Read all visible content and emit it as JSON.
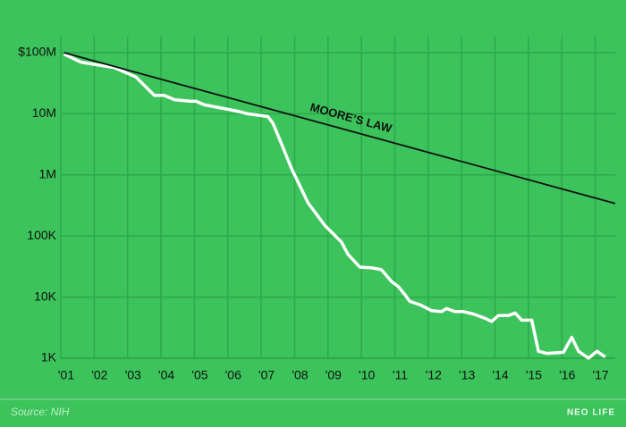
{
  "chart_data": {
    "type": "line",
    "log_scale": true,
    "grid": true,
    "background": "#3cc35b",
    "grid_color": "#2ea84b",
    "xlim": [
      2001,
      2017.6
    ],
    "xticks": [
      {
        "value": 2001,
        "label": "'01"
      },
      {
        "value": 2002,
        "label": "'02"
      },
      {
        "value": 2003,
        "label": "'03"
      },
      {
        "value": 2004,
        "label": "'04"
      },
      {
        "value": 2005,
        "label": "'05"
      },
      {
        "value": 2006,
        "label": "'06"
      },
      {
        "value": 2007,
        "label": "'07"
      },
      {
        "value": 2008,
        "label": "'08"
      },
      {
        "value": 2009,
        "label": "'09"
      },
      {
        "value": 2010,
        "label": "'10"
      },
      {
        "value": 2011,
        "label": "'11"
      },
      {
        "value": 2012,
        "label": "'12"
      },
      {
        "value": 2013,
        "label": "'13"
      },
      {
        "value": 2014,
        "label": "'14"
      },
      {
        "value": 2015,
        "label": "'15"
      },
      {
        "value": 2016,
        "label": "'16"
      },
      {
        "value": 2017,
        "label": "'17"
      }
    ],
    "ylim": [
      1000,
      100000000
    ],
    "yticks": [
      {
        "value": 1000,
        "label": "1K"
      },
      {
        "value": 10000,
        "label": "10K"
      },
      {
        "value": 100000,
        "label": "100K"
      },
      {
        "value": 1000000,
        "label": "1M"
      },
      {
        "value": 10000000,
        "label": "10M"
      },
      {
        "value": 100000000,
        "label": "$100M"
      }
    ],
    "series": [
      {
        "color": "#ffffff",
        "x": [
          2001.1,
          2001.6,
          2002.6,
          2003.25,
          2003.8,
          2004.1,
          2004.4,
          2004.9,
          2005.05,
          2005.3,
          2005.95,
          2006.3,
          2006.6,
          2007.2,
          2007.35,
          2007.6,
          2007.9,
          2008.4,
          2008.9,
          2009.4,
          2009.6,
          2009.95,
          2010.35,
          2010.6,
          2010.9,
          2011.1,
          2011.3,
          2011.45,
          2011.75,
          2012.1,
          2012.4,
          2012.55,
          2012.8,
          2013.05,
          2013.35,
          2013.7,
          2013.9,
          2014.1,
          2014.4,
          2014.6,
          2014.8,
          2015.1,
          2015.3,
          2015.55,
          2016.05,
          2016.3,
          2016.5,
          2016.8,
          2017.05,
          2017.3
        ],
        "values": [
          95000000,
          70000000,
          57000000,
          40000000,
          20000000,
          20000000,
          17000000,
          16000000,
          16000000,
          14000000,
          12000000,
          11000000,
          10000000,
          9000000,
          7000000,
          3300000,
          1300000,
          350000,
          150000,
          80000,
          50000,
          31000,
          30000,
          28000,
          18000,
          15000,
          11000,
          8500,
          7500,
          6000,
          5800,
          6500,
          5800,
          5800,
          5300,
          4500,
          4000,
          5000,
          5000,
          5500,
          4200,
          4200,
          1300,
          1200,
          1250,
          2200,
          1300,
          1000,
          1300,
          1050
        ]
      },
      {
        "name": "MOORE’S LAW",
        "color": "#111111",
        "x": [
          2001.1,
          2017.6
        ],
        "values": [
          100000000,
          340000
        ]
      }
    ],
    "source": "Source: NIH",
    "brand": "NEO LIFE"
  }
}
